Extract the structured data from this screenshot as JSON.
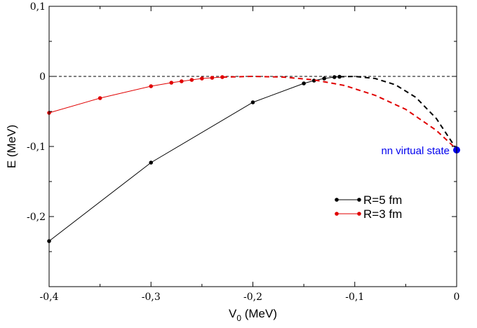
{
  "chart_data": {
    "type": "line",
    "xlabel": "V",
    "xlabel_sub": "0",
    "xlabel_unit": " (MeV)",
    "ylabel": "E (MeV)",
    "xlim": [
      -0.4,
      0
    ],
    "ylim": [
      -0.3,
      0.1
    ],
    "x_ticks": [
      -0.4,
      -0.3,
      -0.2,
      -0.1,
      0
    ],
    "x_tick_labels": [
      "-0,4",
      "-0,3",
      "-0,2",
      "-0,1",
      "0"
    ],
    "y_ticks": [
      -0.2,
      -0.1,
      0,
      0.1
    ],
    "y_tick_labels": [
      "-0,2",
      "-0,1",
      "0",
      "0,1"
    ],
    "grid": false,
    "legend_position": "right",
    "reference_line_y": 0,
    "series": [
      {
        "name": "R=5 fm",
        "color": "#000000",
        "x": [
          -0.4,
          -0.3,
          -0.2,
          -0.15,
          -0.14,
          -0.13,
          -0.12,
          -0.115
        ],
        "y": [
          -0.235,
          -0.123,
          -0.037,
          -0.01,
          -0.006,
          -0.003,
          -0.001,
          -0.0005
        ],
        "extrapolation": {
          "x": [
            -0.115,
            -0.1,
            -0.08,
            -0.06,
            -0.04,
            -0.02,
            0
          ],
          "y": [
            -0.0005,
            0.0,
            -0.003,
            -0.012,
            -0.03,
            -0.06,
            -0.104
          ]
        }
      },
      {
        "name": "R=3 fm",
        "color": "#e00000",
        "x": [
          -0.4,
          -0.35,
          -0.3,
          -0.28,
          -0.27,
          -0.26,
          -0.25,
          -0.24,
          -0.23
        ],
        "y": [
          -0.052,
          -0.031,
          -0.014,
          -0.009,
          -0.007,
          -0.005,
          -0.003,
          -0.002,
          -0.001
        ],
        "extrapolation": {
          "x": [
            -0.23,
            -0.2,
            -0.17,
            -0.14,
            -0.11,
            -0.08,
            -0.05,
            -0.02,
            0
          ],
          "y": [
            -0.001,
            0.0,
            -0.001,
            -0.005,
            -0.013,
            -0.027,
            -0.047,
            -0.077,
            -0.104
          ]
        }
      }
    ],
    "annotations": [
      {
        "text": "nn virtual state",
        "color": "#0000ee",
        "point": {
          "x": 0,
          "y": -0.105
        }
      }
    ]
  }
}
